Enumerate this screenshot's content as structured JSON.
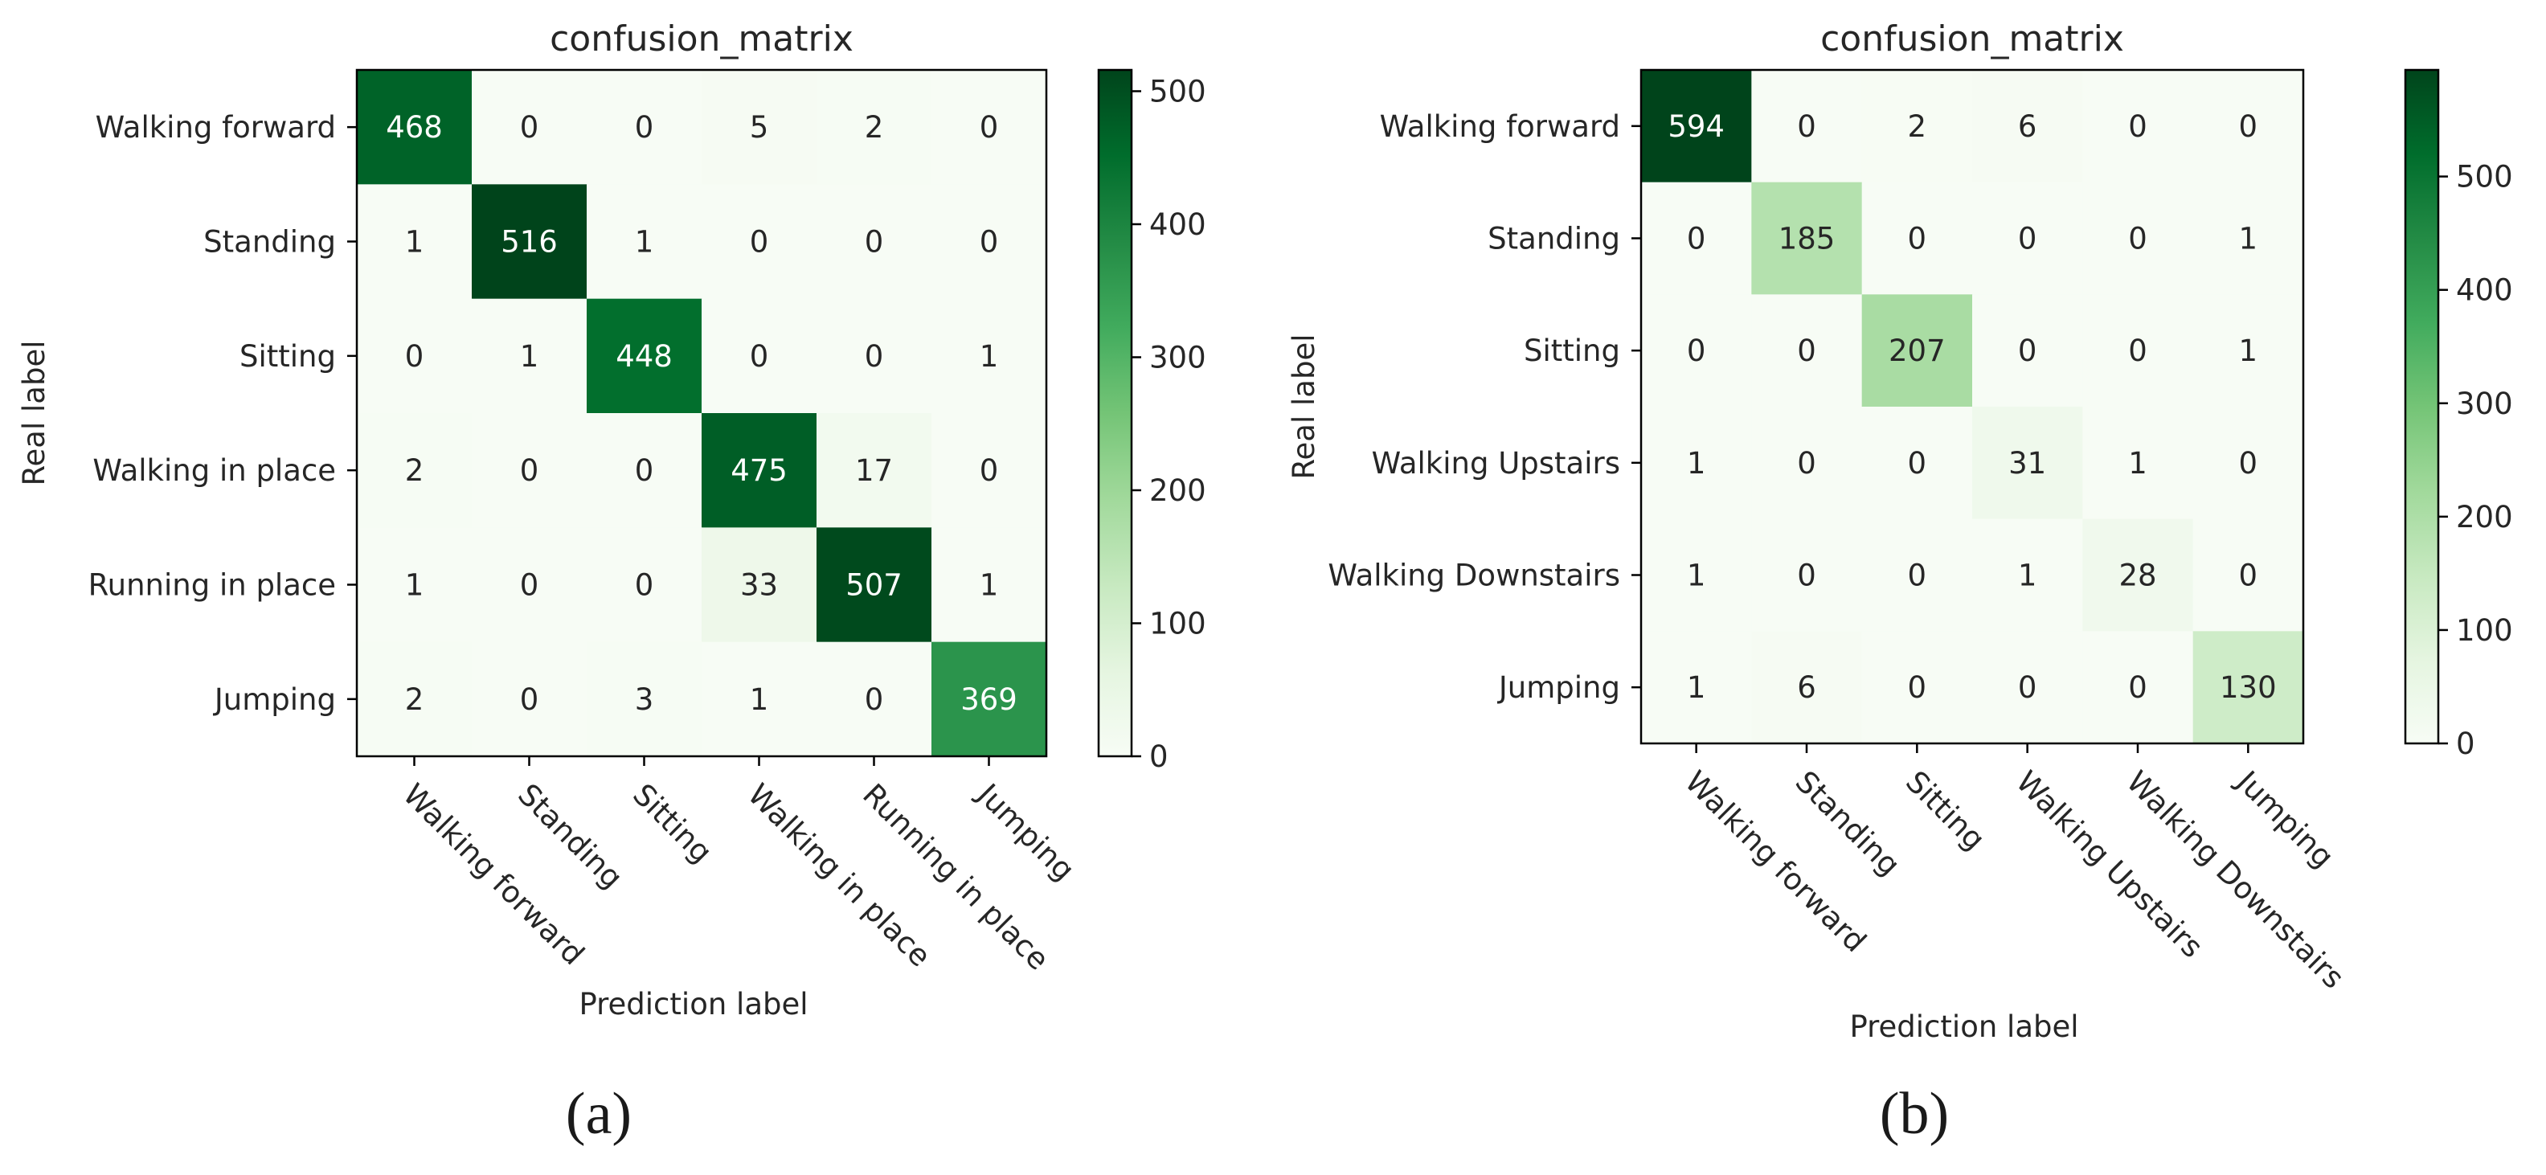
{
  "chart_data": [
    {
      "type": "heatmap",
      "title": "confusion_matrix",
      "xlabel": "Prediction label",
      "ylabel": "Real label",
      "caption": "(a)",
      "labels": [
        "Walking forward",
        "Standing",
        "Sitting",
        "Walking in place",
        "Running in place",
        "Jumping"
      ],
      "matrix": [
        [
          468,
          0,
          0,
          5,
          2,
          0
        ],
        [
          1,
          516,
          1,
          0,
          0,
          0
        ],
        [
          0,
          1,
          448,
          0,
          0,
          1
        ],
        [
          2,
          0,
          0,
          475,
          17,
          0
        ],
        [
          1,
          0,
          0,
          33,
          507,
          1
        ],
        [
          2,
          0,
          3,
          1,
          0,
          369
        ]
      ],
      "colorbar": {
        "min": 0,
        "max": 516,
        "ticks": [
          0,
          100,
          200,
          300,
          400,
          500
        ]
      },
      "colormap": {
        "low": "#f7fcf5",
        "high": "#00441b"
      }
    },
    {
      "type": "heatmap",
      "title": "confusion_matrix",
      "xlabel": "Prediction label",
      "ylabel": "Real label",
      "caption": "(b)",
      "labels": [
        "Walking forward",
        "Standing",
        "Sitting",
        "Walking Upstairs",
        "Walking Downstairs",
        "Jumping"
      ],
      "matrix": [
        [
          594,
          0,
          2,
          6,
          0,
          0
        ],
        [
          0,
          185,
          0,
          0,
          0,
          1
        ],
        [
          0,
          0,
          207,
          0,
          0,
          1
        ],
        [
          1,
          0,
          0,
          31,
          1,
          0
        ],
        [
          1,
          0,
          0,
          1,
          28,
          0
        ],
        [
          1,
          6,
          0,
          0,
          0,
          130
        ]
      ],
      "colorbar": {
        "min": 0,
        "max": 594,
        "ticks": [
          0,
          100,
          200,
          300,
          400,
          500
        ]
      },
      "colormap": {
        "low": "#f7fcf5",
        "high": "#00441b"
      }
    }
  ]
}
